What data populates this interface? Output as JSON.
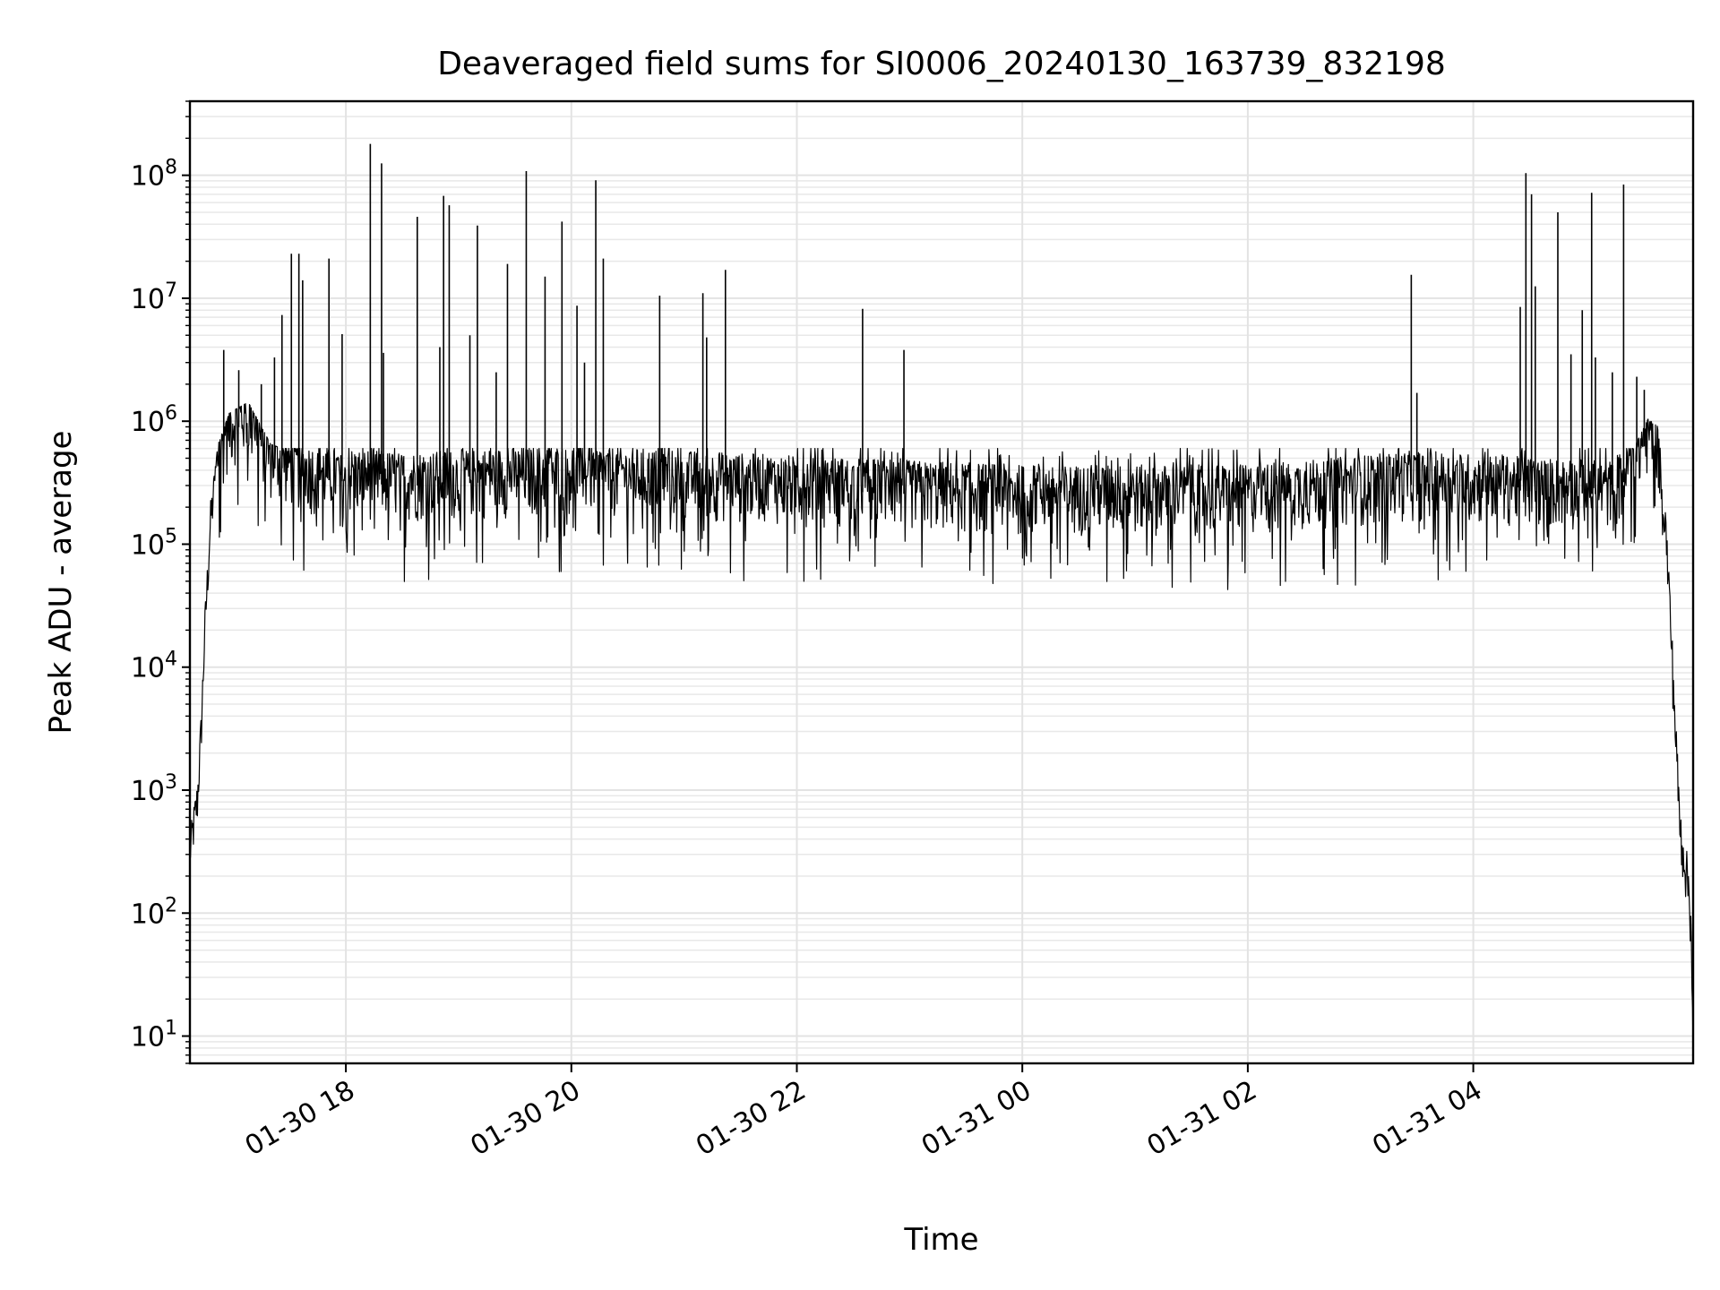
{
  "chart_data": {
    "type": "line",
    "title": "Deaveraged field sums for SI0006_20240130_163739_832198",
    "xlabel": "Time",
    "ylabel": "Peak ADU - average",
    "yscale": "log",
    "ylim": [
      6,
      400000000
    ],
    "xlim": [
      "2024-01-30 16:37",
      "2024-01-31 05:57"
    ],
    "x_ticks": [
      "01-30 18",
      "01-30 20",
      "01-30 22",
      "01-31 00",
      "01-31 02",
      "01-31 04"
    ],
    "x_tick_times": [
      "2024-01-30 18:00",
      "2024-01-30 20:00",
      "2024-01-30 22:00",
      "2024-01-31 00:00",
      "2024-01-31 02:00",
      "2024-01-31 04:00"
    ],
    "y_ticks": [
      {
        "base": "10",
        "exp": "1",
        "value": 10
      },
      {
        "base": "10",
        "exp": "2",
        "value": 100
      },
      {
        "base": "10",
        "exp": "3",
        "value": 1000
      },
      {
        "base": "10",
        "exp": "4",
        "value": 10000
      },
      {
        "base": "10",
        "exp": "5",
        "value": 100000
      },
      {
        "base": "10",
        "exp": "6",
        "value": 1000000
      },
      {
        "base": "10",
        "exp": "7",
        "value": 10000000
      },
      {
        "base": "10",
        "exp": "8",
        "value": 100000000
      }
    ],
    "grid": true,
    "series": [
      {
        "color": "#000000",
        "baseline": [
          [
            "2024-01-30 16:37",
            300
          ],
          [
            "2024-01-30 16:39",
            500
          ],
          [
            "2024-01-30 16:41",
            800
          ],
          [
            "2024-01-30 16:43",
            3000
          ],
          [
            "2024-01-30 16:45",
            20000
          ],
          [
            "2024-01-30 16:48",
            150000
          ],
          [
            "2024-01-30 16:52",
            500000
          ],
          [
            "2024-01-30 16:58",
            900000
          ],
          [
            "2024-01-30 17:08",
            1100000
          ],
          [
            "2024-01-30 17:20",
            500000
          ],
          [
            "2024-01-30 17:40",
            380000
          ],
          [
            "2024-01-30 18:30",
            330000
          ],
          [
            "2024-01-30 20:00",
            380000
          ],
          [
            "2024-01-30 21:00",
            340000
          ],
          [
            "2024-01-30 22:00",
            310000
          ],
          [
            "2024-01-31 00:00",
            260000
          ],
          [
            "2024-01-31 02:00",
            260000
          ],
          [
            "2024-01-31 03:30",
            340000
          ],
          [
            "2024-01-31 04:30",
            300000
          ],
          [
            "2024-01-31 05:15",
            280000
          ],
          [
            "2024-01-31 05:25",
            450000
          ],
          [
            "2024-01-31 05:33",
            800000
          ],
          [
            "2024-01-31 05:38",
            700000
          ],
          [
            "2024-01-31 05:41",
            300000
          ],
          [
            "2024-01-31 05:44",
            50000
          ],
          [
            "2024-01-31 05:47",
            5000
          ],
          [
            "2024-01-31 05:50",
            500
          ],
          [
            "2024-01-31 05:53",
            250
          ],
          [
            "2024-01-31 05:55",
            150
          ],
          [
            "2024-01-31 05:56",
            80
          ],
          [
            "2024-01-31 05:57",
            6
          ]
        ],
        "spikes": [
          [
            "2024-01-30 16:55",
            3800000
          ],
          [
            "2024-01-30 17:03",
            2600000
          ],
          [
            "2024-01-30 17:15",
            2000000
          ],
          [
            "2024-01-30 17:22",
            3300000
          ],
          [
            "2024-01-30 17:26",
            7300000
          ],
          [
            "2024-01-30 17:31",
            23000000
          ],
          [
            "2024-01-30 17:35",
            23000000
          ],
          [
            "2024-01-30 17:37",
            14000000
          ],
          [
            "2024-01-30 17:51",
            21000000
          ],
          [
            "2024-01-30 17:58",
            5100000
          ],
          [
            "2024-01-30 18:13",
            180000000
          ],
          [
            "2024-01-30 18:19",
            125000000
          ],
          [
            "2024-01-30 18:20",
            3600000
          ],
          [
            "2024-01-30 18:38",
            46000000
          ],
          [
            "2024-01-30 18:50",
            4000000
          ],
          [
            "2024-01-30 18:52",
            68000000
          ],
          [
            "2024-01-30 18:55",
            57000000
          ],
          [
            "2024-01-30 19:06",
            5000000
          ],
          [
            "2024-01-30 19:10",
            39000000
          ],
          [
            "2024-01-30 19:20",
            2500000
          ],
          [
            "2024-01-30 19:26",
            19000000
          ],
          [
            "2024-01-30 19:36",
            108000000
          ],
          [
            "2024-01-30 19:46",
            15000000
          ],
          [
            "2024-01-30 19:55",
            42000000
          ],
          [
            "2024-01-30 20:03",
            8700000
          ],
          [
            "2024-01-30 20:07",
            3000000
          ],
          [
            "2024-01-30 20:13",
            91000000
          ],
          [
            "2024-01-30 20:17",
            21000000
          ],
          [
            "2024-01-30 20:47",
            10500000
          ],
          [
            "2024-01-30 21:10",
            11000000
          ],
          [
            "2024-01-30 21:12",
            4800000
          ],
          [
            "2024-01-30 21:22",
            17000000
          ],
          [
            "2024-01-30 22:35",
            8200000
          ],
          [
            "2024-01-30 22:57",
            3800000
          ],
          [
            "2024-01-31 03:27",
            15500000
          ],
          [
            "2024-01-31 03:30",
            1700000
          ],
          [
            "2024-01-31 04:25",
            8500000
          ],
          [
            "2024-01-31 04:28",
            104000000
          ],
          [
            "2024-01-31 04:31",
            70000000
          ],
          [
            "2024-01-31 04:33",
            12500000
          ],
          [
            "2024-01-31 04:45",
            50000000
          ],
          [
            "2024-01-31 04:52",
            3500000
          ],
          [
            "2024-01-31 04:58",
            8000000
          ],
          [
            "2024-01-31 05:03",
            72000000
          ],
          [
            "2024-01-31 05:05",
            3300000
          ],
          [
            "2024-01-31 05:14",
            2500000
          ],
          [
            "2024-01-31 05:20",
            84000000
          ],
          [
            "2024-01-31 05:27",
            2300000
          ],
          [
            "2024-01-31 05:31",
            1800000
          ]
        ],
        "noise": {
          "dips_to": 30000,
          "peaks_to": 600000
        }
      }
    ]
  }
}
